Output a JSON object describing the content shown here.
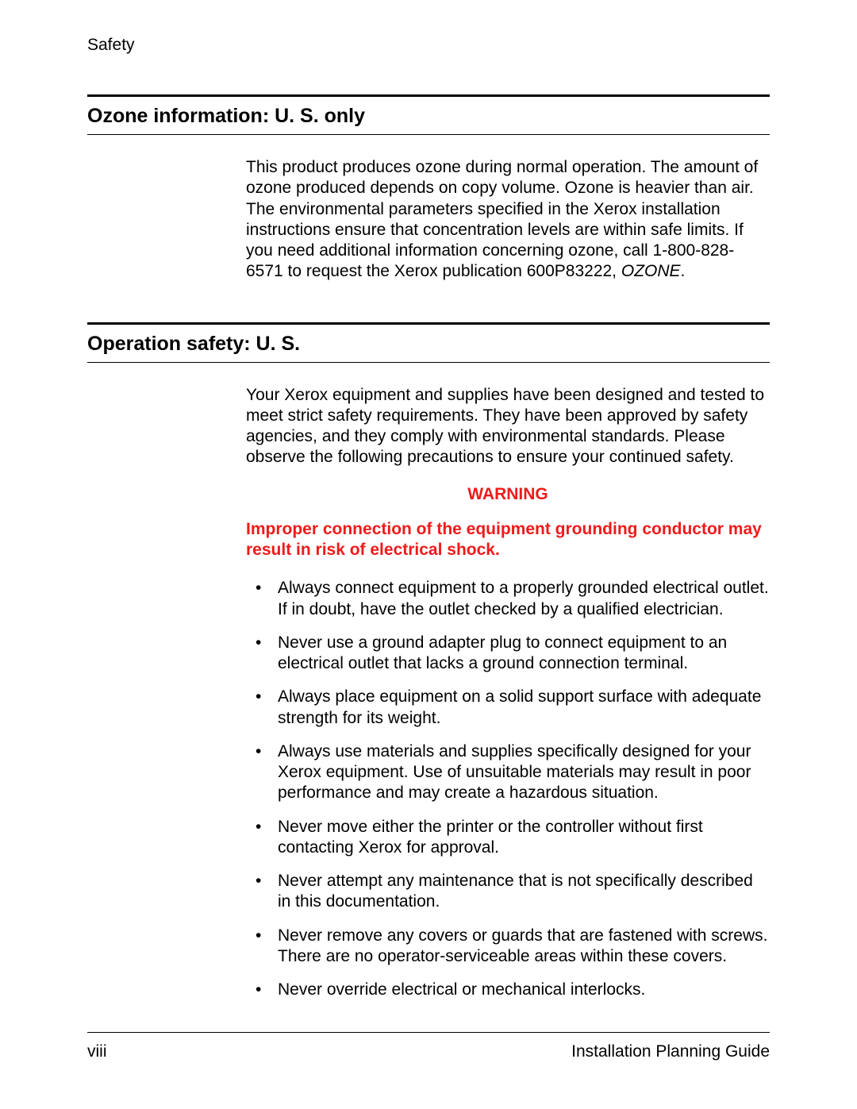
{
  "header": {
    "label": "Safety"
  },
  "sections": {
    "ozone": {
      "title": "Ozone information: U. S. only",
      "para_a": "This product produces ozone during normal operation. The amount of ozone produced depends on copy volume. Ozone is heavier than air. The environmental parameters specified in the Xerox installation instructions ensure that concentration levels are within safe limits. If you need additional information concerning ozone, call 1-800-828-6571 to request the Xerox publication 600P83222, ",
      "para_italic": "OZONE",
      "para_b": "."
    },
    "operation": {
      "title": "Operation safety: U. S.",
      "intro": "Your Xerox equipment and supplies have been designed and tested to meet strict safety requirements. They have been approved by safety agencies, and they comply with environmental standards. Please observe the following precautions to ensure your continued safety.",
      "warning_label": "WARNING",
      "warning_text": "Improper connection of the equipment grounding conductor may result in risk of electrical shock.",
      "bullets": [
        "Always connect equipment to a properly grounded electrical outlet. If in doubt, have the outlet checked by a qualified electrician.",
        "Never use a ground adapter plug to connect equipment to an electrical outlet that lacks a ground connection terminal.",
        "Always place equipment on a solid support surface with adequate strength for its weight.",
        "Always use materials and supplies specifically designed for your Xerox equipment. Use of unsuitable materials may result in poor performance and may create a hazardous situation.",
        "Never move either the printer or the controller without first contacting Xerox for approval.",
        "Never attempt any maintenance that is not specifically described in this documentation.",
        "Never remove any covers or guards that are fastened with screws. There are no operator-serviceable areas within these covers.",
        "Never override electrical or mechanical interlocks."
      ]
    }
  },
  "footer": {
    "page": "viii",
    "doc": "Installation Planning Guide"
  },
  "colors": {
    "warning": "#ef1a1a",
    "text": "#000000",
    "bg": "#ffffff"
  }
}
